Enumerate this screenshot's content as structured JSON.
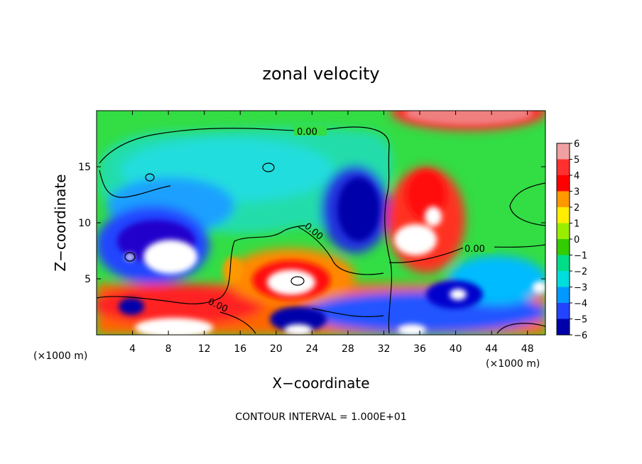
{
  "chart_data": {
    "type": "heatmap",
    "title": "zonal velocity",
    "xlabel": "X−coordinate",
    "ylabel": "Z−coordinate",
    "x_unit_left": "(×1000 m)",
    "x_unit_right": "(×1000 m)",
    "footer": "CONTOUR INTERVAL = 1.000E+01",
    "xlim": [
      0,
      50
    ],
    "ylim": [
      0,
      20
    ],
    "x_ticks": [
      4,
      8,
      12,
      16,
      20,
      24,
      28,
      32,
      36,
      40,
      44,
      48
    ],
    "y_ticks": [
      5,
      10,
      15
    ],
    "colorbar": {
      "ticks": [
        6,
        5,
        4,
        3,
        2,
        1,
        0,
        -1,
        -2,
        -3,
        -4,
        -5,
        -6
      ],
      "range": [
        -6,
        6
      ],
      "colors": {
        "6": "#f0a0a0",
        "5": "#ff3030",
        "4": "#ff0000",
        "3": "#ff9900",
        "2": "#ffee00",
        "1": "#99ee00",
        "0": "#33cc00",
        "-1": "#00dd88",
        "-2": "#00dddd",
        "-3": "#0099ff",
        "-4": "#2244ff",
        "-5": "#0000aa",
        "-6": "#660099"
      }
    },
    "contour_labels": [
      "0.00",
      "0.00",
      "0.00",
      "0.00"
    ],
    "features": [
      {
        "x": 7,
        "z": 7.5,
        "value": 7
      },
      {
        "x": 20.5,
        "z": 4.8,
        "value": 7
      },
      {
        "x": 37,
        "z": 8.2,
        "value": 6
      },
      {
        "x": 38,
        "z": 11.5,
        "value": 5
      },
      {
        "x": 28,
        "z": 11.5,
        "value": -5
      },
      {
        "x": 9,
        "z": 9,
        "value": -5
      },
      {
        "x": 8,
        "z": 0.8,
        "value": 7
      },
      {
        "x": 38,
        "z": 19.5,
        "value": 6
      }
    ]
  }
}
